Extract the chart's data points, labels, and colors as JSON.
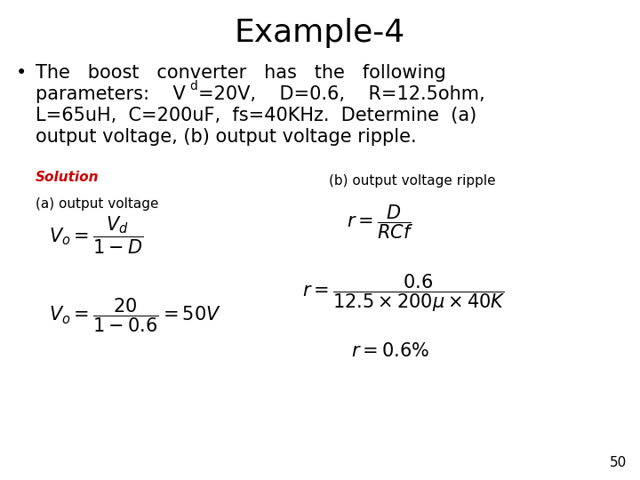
{
  "title": "Example-4",
  "title_fontsize": 26,
  "bg_color": "#ffffff",
  "solution_label": "Solution",
  "solution_color": "#cc0000",
  "label_a": "(a) output voltage",
  "label_b": "(b) output voltage ripple",
  "page_number": "50",
  "font_body": "DejaVu Sans",
  "body_fontsize": 15,
  "small_fontsize": 11
}
